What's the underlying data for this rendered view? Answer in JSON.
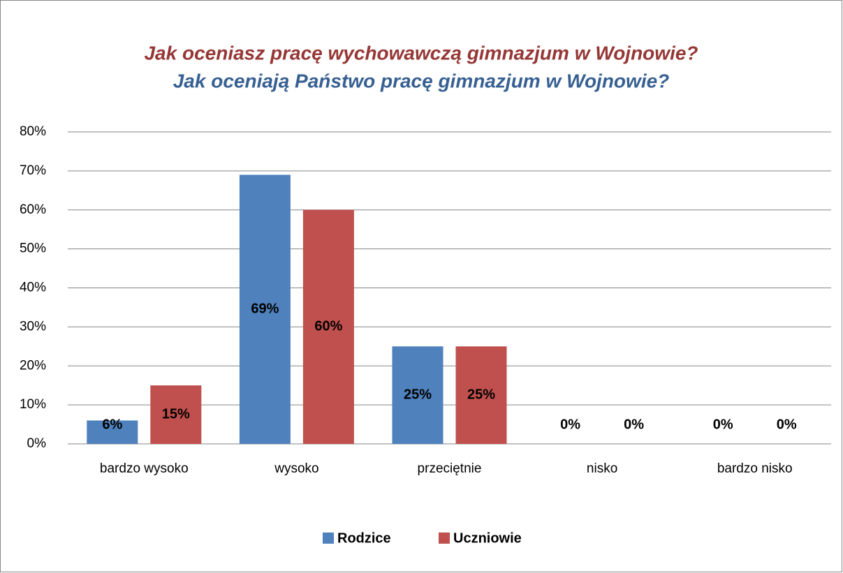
{
  "chart_data": {
    "type": "bar",
    "title": "Jak oceniasz pracę wychowawczą gimnazjum w Wojnowie?",
    "title_color": "#953735",
    "subtitle": "Jak oceniają Państwo pracę gimnazjum w Wojnowie?",
    "subtitle_color": "#376092",
    "categories": [
      "bardzo wysoko",
      "wysoko",
      "przeciętnie",
      "nisko",
      "bardzo nisko"
    ],
    "series": [
      {
        "name": "Rodzice",
        "color": "#4f81bd",
        "values": [
          6,
          69,
          25,
          0,
          0
        ],
        "value_labels": [
          "6%",
          "69%",
          "25%",
          "0%",
          "0%"
        ]
      },
      {
        "name": "Uczniowie",
        "color": "#c0504d",
        "values": [
          15,
          60,
          25,
          0,
          0
        ],
        "value_labels": [
          "15%",
          "60%",
          "25%",
          "0%",
          "0%"
        ]
      }
    ],
    "ylim": [
      0,
      80
    ],
    "yticks": [
      {
        "value": 0,
        "label": "0%"
      },
      {
        "value": 10,
        "label": "10%"
      },
      {
        "value": 20,
        "label": "20%"
      },
      {
        "value": 30,
        "label": "30%"
      },
      {
        "value": 40,
        "label": "40%"
      },
      {
        "value": 50,
        "label": "50%"
      },
      {
        "value": 60,
        "label": "60%"
      },
      {
        "value": 70,
        "label": "70%"
      },
      {
        "value": 80,
        "label": "80%"
      }
    ],
    "grid": true,
    "legend": "bottom"
  }
}
